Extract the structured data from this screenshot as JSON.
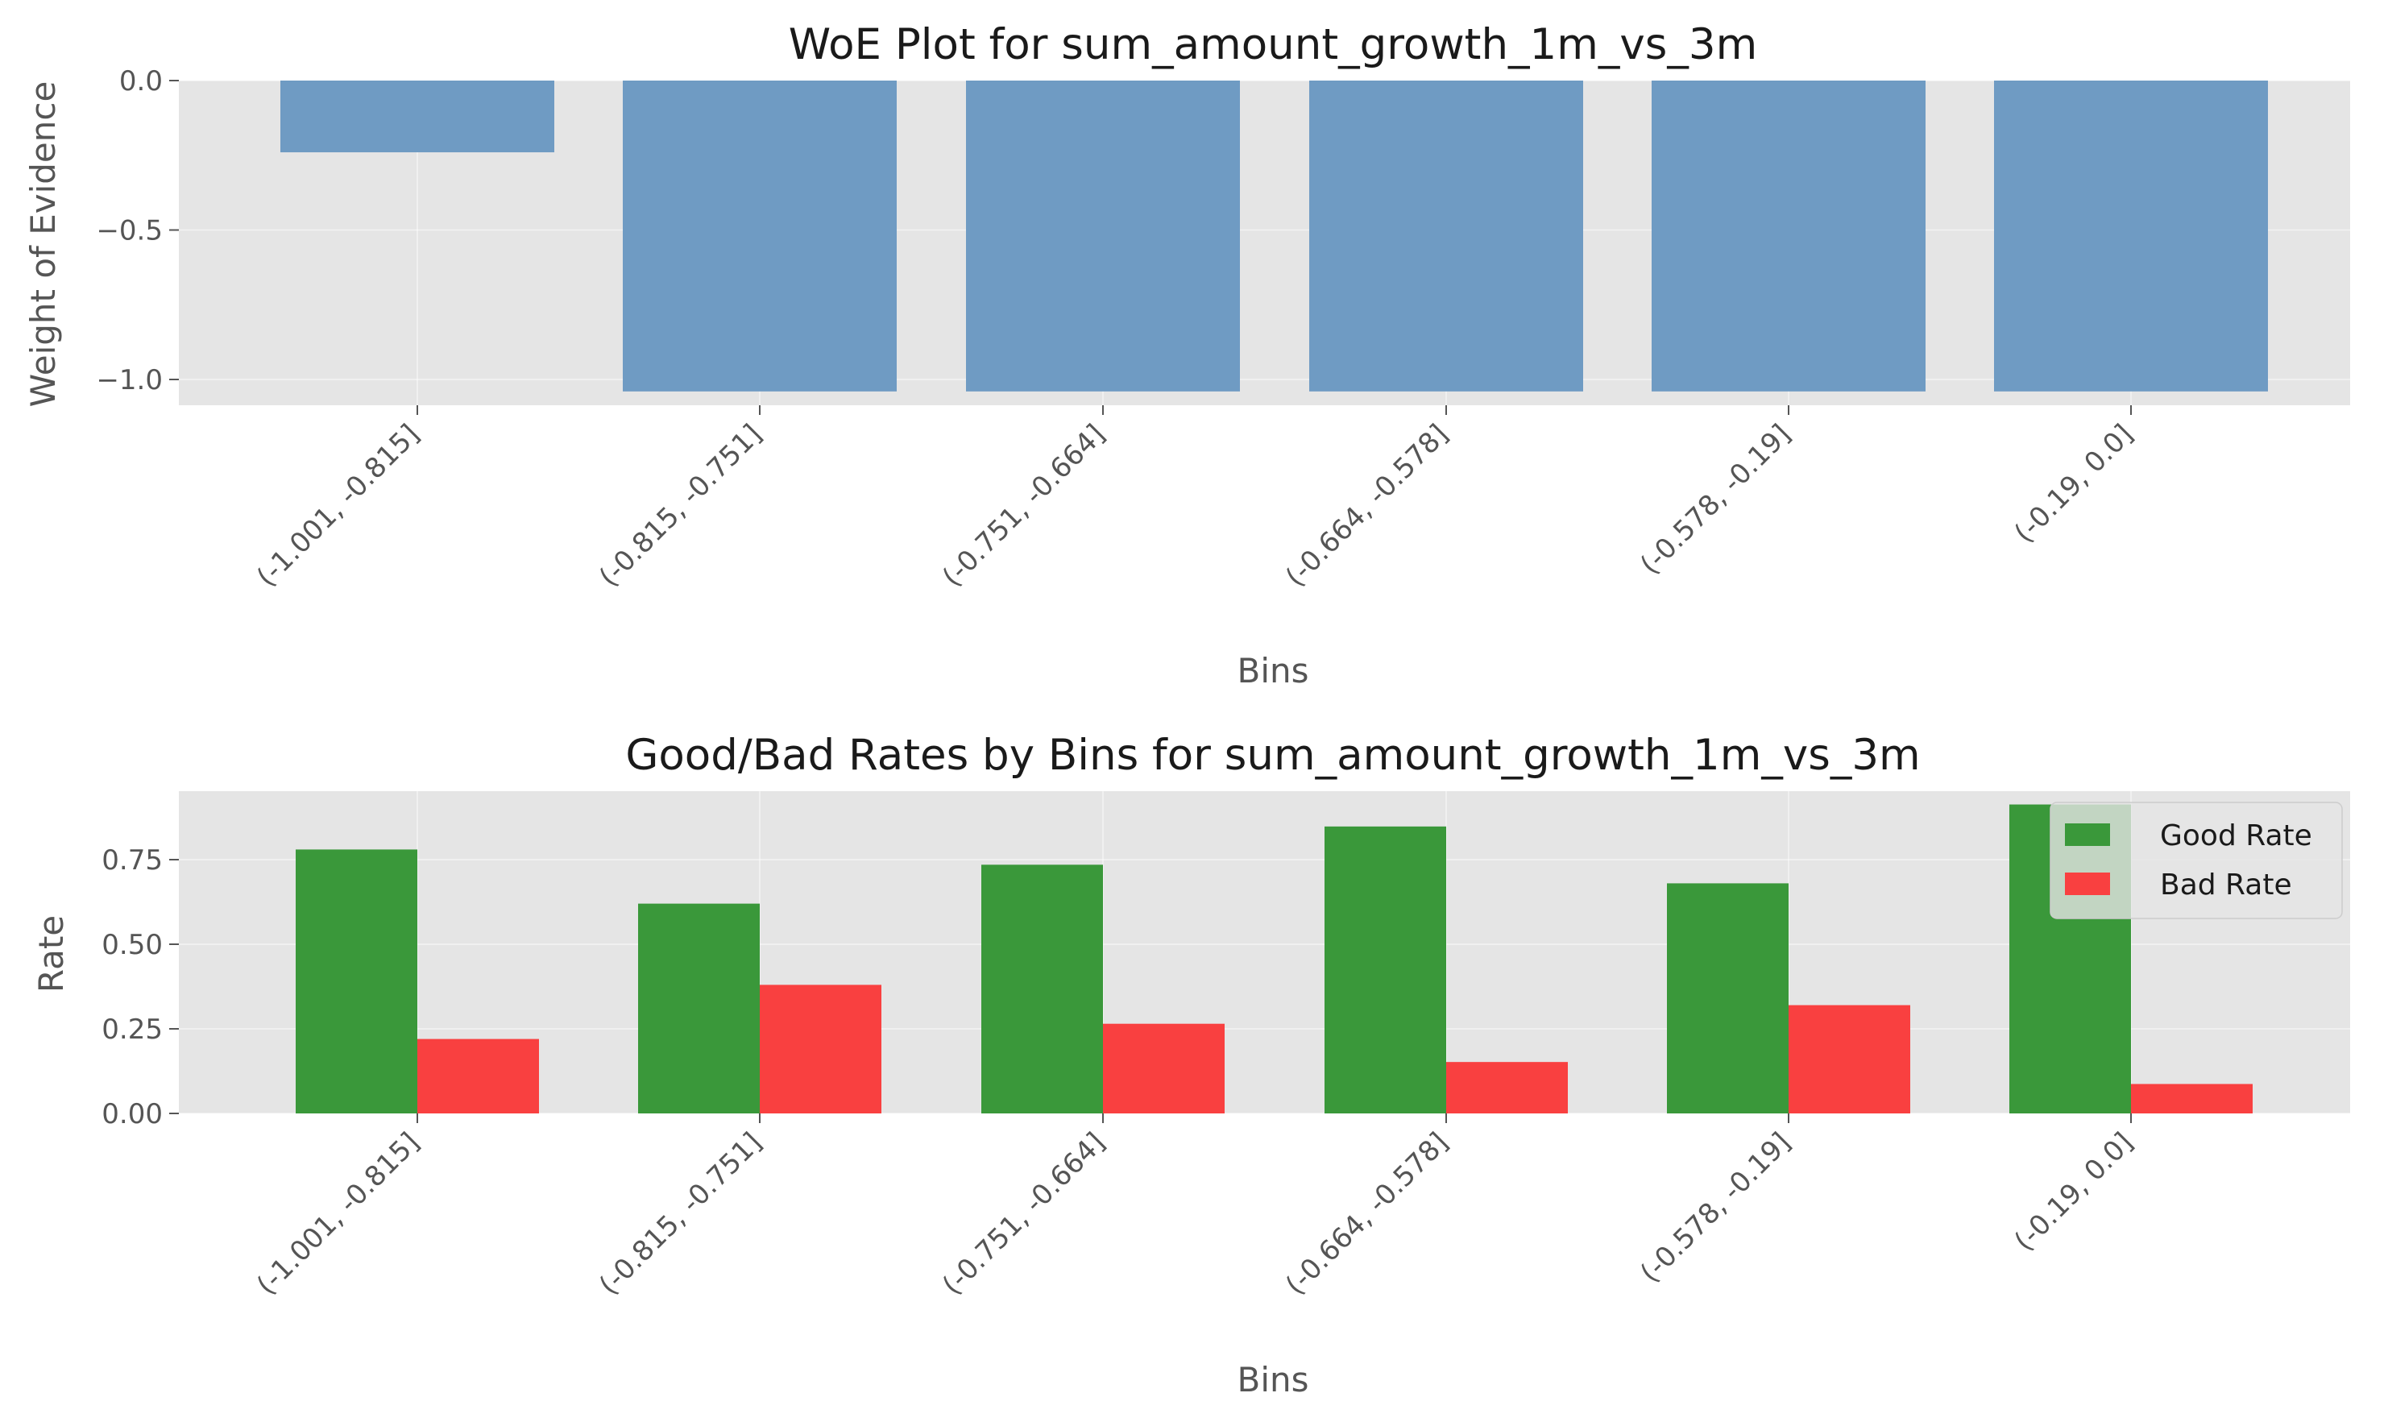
{
  "chart_data": [
    {
      "type": "bar",
      "title": "WoE Plot for sum_amount_growth_1m_vs_3m",
      "xlabel": "Bins",
      "ylabel": "Weight of Evidence",
      "categories": [
        "(-1.001, -0.815]",
        "(-0.815, -0.751]",
        "(-0.751, -0.664]",
        "(-0.664, -0.578]",
        "(-0.578, -0.19]",
        "(-0.19, 0.0]"
      ],
      "series": [
        {
          "values": [
            -0.24,
            -1.04,
            -1.04,
            -1.04,
            -1.04,
            -1.04
          ],
          "color": "#6f9bc3"
        }
      ],
      "ylim": [
        -1.08,
        0.0
      ],
      "yticks": [
        0.0,
        -0.5,
        -1.0
      ],
      "ytick_labels": [
        "0.0",
        "−0.5",
        "−1.0"
      ],
      "grid": true
    },
    {
      "type": "bar",
      "title": "Good/Bad Rates by Bins for sum_amount_growth_1m_vs_3m",
      "xlabel": "Bins",
      "ylabel": "Rate",
      "categories": [
        "(-1.001, -0.815]",
        "(-0.815, -0.751]",
        "(-0.751, -0.664]",
        "(-0.664, -0.578]",
        "(-0.578, -0.19]",
        "(-0.19, 0.0]"
      ],
      "series": [
        {
          "name": "Good Rate",
          "values": [
            0.78,
            0.62,
            0.735,
            0.848,
            0.68,
            0.913
          ],
          "color": "#3a983a"
        },
        {
          "name": "Bad Rate",
          "values": [
            0.22,
            0.38,
            0.265,
            0.152,
            0.32,
            0.087
          ],
          "color": "#f94040"
        }
      ],
      "ylim": [
        0.0,
        0.955
      ],
      "yticks": [
        0.0,
        0.25,
        0.5,
        0.75
      ],
      "ytick_labels": [
        "0.00",
        "0.25",
        "0.50",
        "0.75"
      ],
      "legend": "upper right",
      "grid": true
    }
  ]
}
